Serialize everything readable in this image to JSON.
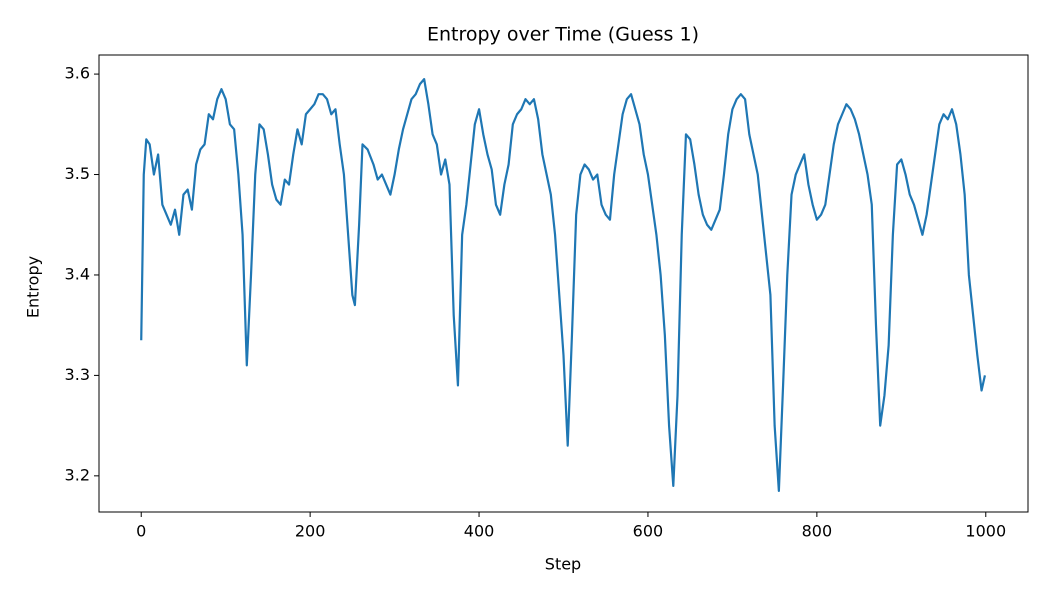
{
  "chart_data": {
    "type": "line",
    "title": "Entropy over Time (Guess 1)",
    "x_label": "Step",
    "y_label": "Entropy",
    "x": [
      0,
      3,
      6,
      10,
      15,
      20,
      25,
      30,
      35,
      40,
      45,
      50,
      55,
      60,
      65,
      70,
      75,
      80,
      85,
      90,
      95,
      100,
      105,
      110,
      115,
      120,
      125,
      130,
      135,
      140,
      145,
      150,
      155,
      160,
      165,
      170,
      175,
      180,
      185,
      190,
      195,
      200,
      205,
      210,
      215,
      220,
      225,
      230,
      235,
      240,
      245,
      250,
      253,
      258,
      262,
      268,
      275,
      280,
      285,
      290,
      295,
      300,
      305,
      310,
      315,
      320,
      325,
      330,
      335,
      340,
      345,
      350,
      355,
      360,
      365,
      370,
      375,
      380,
      385,
      390,
      395,
      400,
      405,
      410,
      415,
      420,
      425,
      430,
      435,
      440,
      445,
      450,
      455,
      460,
      465,
      470,
      475,
      480,
      485,
      490,
      495,
      500,
      505,
      510,
      515,
      520,
      525,
      530,
      535,
      540,
      545,
      550,
      555,
      560,
      565,
      570,
      575,
      580,
      585,
      590,
      595,
      600,
      605,
      610,
      615,
      620,
      625,
      630,
      635,
      640,
      645,
      650,
      655,
      660,
      665,
      670,
      675,
      680,
      685,
      690,
      695,
      700,
      705,
      710,
      715,
      720,
      725,
      730,
      735,
      740,
      745,
      750,
      755,
      760,
      765,
      770,
      775,
      780,
      785,
      790,
      795,
      800,
      805,
      810,
      815,
      820,
      825,
      830,
      835,
      840,
      845,
      850,
      855,
      860,
      865,
      870,
      875,
      880,
      885,
      890,
      895,
      900,
      905,
      910,
      915,
      920,
      925,
      930,
      935,
      940,
      945,
      950,
      955,
      960,
      965,
      970,
      975,
      980,
      985,
      990,
      995,
      999
    ],
    "series": [
      {
        "name": "Entropy",
        "color": "#1f77b4",
        "values": [
          3.335,
          3.5,
          3.535,
          3.53,
          3.5,
          3.52,
          3.47,
          3.46,
          3.45,
          3.465,
          3.44,
          3.48,
          3.485,
          3.465,
          3.51,
          3.525,
          3.53,
          3.56,
          3.555,
          3.575,
          3.585,
          3.575,
          3.55,
          3.545,
          3.5,
          3.44,
          3.31,
          3.4,
          3.5,
          3.55,
          3.545,
          3.52,
          3.49,
          3.475,
          3.47,
          3.495,
          3.49,
          3.52,
          3.545,
          3.53,
          3.56,
          3.565,
          3.57,
          3.58,
          3.58,
          3.575,
          3.56,
          3.565,
          3.53,
          3.5,
          3.44,
          3.38,
          3.37,
          3.45,
          3.53,
          3.525,
          3.51,
          3.495,
          3.5,
          3.49,
          3.48,
          3.5,
          3.525,
          3.545,
          3.56,
          3.575,
          3.58,
          3.59,
          3.595,
          3.57,
          3.54,
          3.53,
          3.5,
          3.515,
          3.49,
          3.36,
          3.29,
          3.44,
          3.47,
          3.51,
          3.55,
          3.565,
          3.54,
          3.52,
          3.505,
          3.47,
          3.46,
          3.49,
          3.51,
          3.55,
          3.56,
          3.565,
          3.575,
          3.57,
          3.575,
          3.555,
          3.52,
          3.5,
          3.48,
          3.44,
          3.38,
          3.32,
          3.23,
          3.34,
          3.46,
          3.5,
          3.51,
          3.505,
          3.495,
          3.5,
          3.47,
          3.46,
          3.455,
          3.5,
          3.53,
          3.56,
          3.575,
          3.58,
          3.565,
          3.55,
          3.52,
          3.5,
          3.47,
          3.44,
          3.4,
          3.34,
          3.25,
          3.19,
          3.28,
          3.44,
          3.54,
          3.535,
          3.51,
          3.48,
          3.46,
          3.45,
          3.445,
          3.455,
          3.465,
          3.5,
          3.54,
          3.565,
          3.575,
          3.58,
          3.575,
          3.54,
          3.52,
          3.5,
          3.46,
          3.42,
          3.38,
          3.25,
          3.185,
          3.29,
          3.4,
          3.48,
          3.5,
          3.51,
          3.52,
          3.49,
          3.47,
          3.455,
          3.46,
          3.47,
          3.5,
          3.53,
          3.55,
          3.56,
          3.57,
          3.565,
          3.555,
          3.54,
          3.52,
          3.5,
          3.47,
          3.35,
          3.25,
          3.28,
          3.33,
          3.44,
          3.51,
          3.515,
          3.5,
          3.48,
          3.47,
          3.455,
          3.44,
          3.46,
          3.49,
          3.52,
          3.55,
          3.56,
          3.555,
          3.565,
          3.55,
          3.52,
          3.48,
          3.4,
          3.36,
          3.32,
          3.285,
          3.3
        ]
      }
    ],
    "xlim": [
      -50,
      1050
    ],
    "xticks": [
      0,
      200,
      400,
      600,
      800,
      1000
    ],
    "ylim": [
      3.164,
      3.619
    ],
    "yticks": [
      3.2,
      3.3,
      3.4,
      3.5,
      3.6
    ],
    "grid": false
  }
}
